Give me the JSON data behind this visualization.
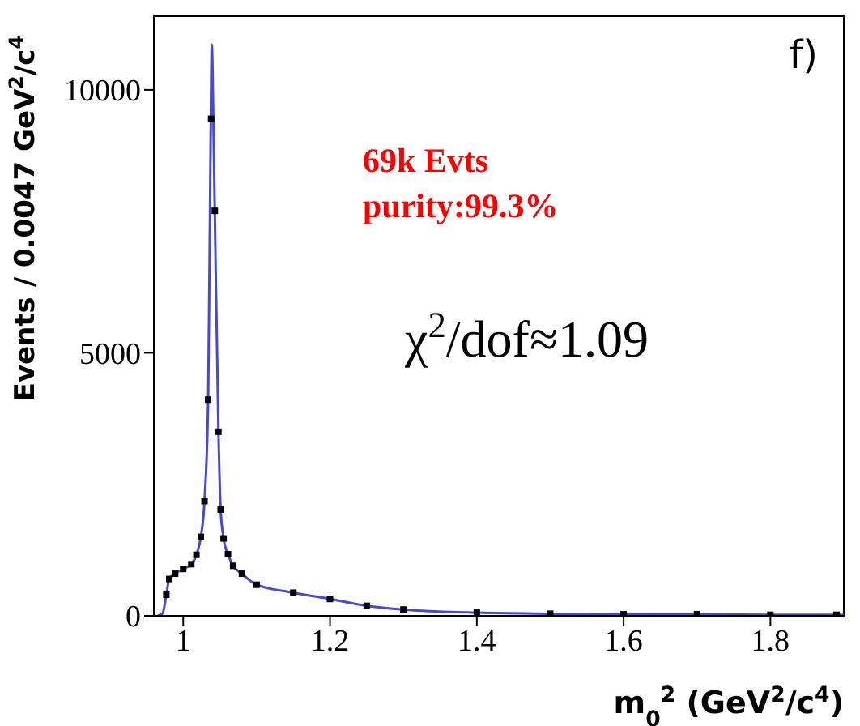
{
  "chart_data": {
    "type": "scatter",
    "xlabel": "m$_{0}$$^{2}$ (GeV$^{2}$/c$^{4}$)",
    "ylabel": "Events / 0.0047 GeV$^{2}$/c$^{4}$",
    "annotations": [
      "f)",
      "69k Evts",
      "purity:99.3%",
      "χ$^{2}$/dof≈1.09"
    ],
    "xlim": [
      0.96,
      1.9
    ],
    "xticks": [
      1,
      1.2,
      1.4,
      1.6,
      1.8
    ],
    "ylim": [
      0,
      11400
    ],
    "yticks": [
      0,
      5000,
      10000
    ],
    "series": [
      {
        "marker": "square",
        "color": "#000000",
        "x": [
          0.977,
          0.981,
          0.989,
          1.0,
          1.011,
          1.018,
          1.024,
          1.029,
          1.034,
          1.038,
          1.043,
          1.048,
          1.051,
          1.055,
          1.061,
          1.068,
          1.08,
          1.1,
          1.15,
          1.2,
          1.25,
          1.3,
          1.4,
          1.5,
          1.6,
          1.7,
          1.8,
          1.89
        ],
        "values": [
          400,
          700,
          800,
          890,
          980,
          1160,
          1500,
          2180,
          4110,
          9450,
          7700,
          3500,
          2020,
          1470,
          1170,
          950,
          800,
          590,
          440,
          320,
          190,
          120,
          60,
          40,
          30,
          30,
          20,
          20
        ]
      },
      {
        "type": "line",
        "color": "#4848d8",
        "x": [
          0.965,
          0.972,
          0.977,
          0.981,
          0.989,
          1.0,
          1.011,
          1.018,
          1.024,
          1.029,
          1.034,
          1.037,
          1.039,
          1.041,
          1.043,
          1.048,
          1.051,
          1.055,
          1.061,
          1.068,
          1.08,
          1.1,
          1.15,
          1.2,
          1.25,
          1.3,
          1.4,
          1.5,
          1.6,
          1.7,
          1.8,
          1.9
        ],
        "values": [
          0,
          50,
          400,
          700,
          800,
          890,
          980,
          1160,
          1500,
          2180,
          4110,
          8500,
          10860,
          9500,
          7700,
          3500,
          2020,
          1470,
          1170,
          950,
          800,
          590,
          440,
          320,
          190,
          120,
          60,
          40,
          30,
          30,
          20,
          20
        ]
      }
    ]
  }
}
